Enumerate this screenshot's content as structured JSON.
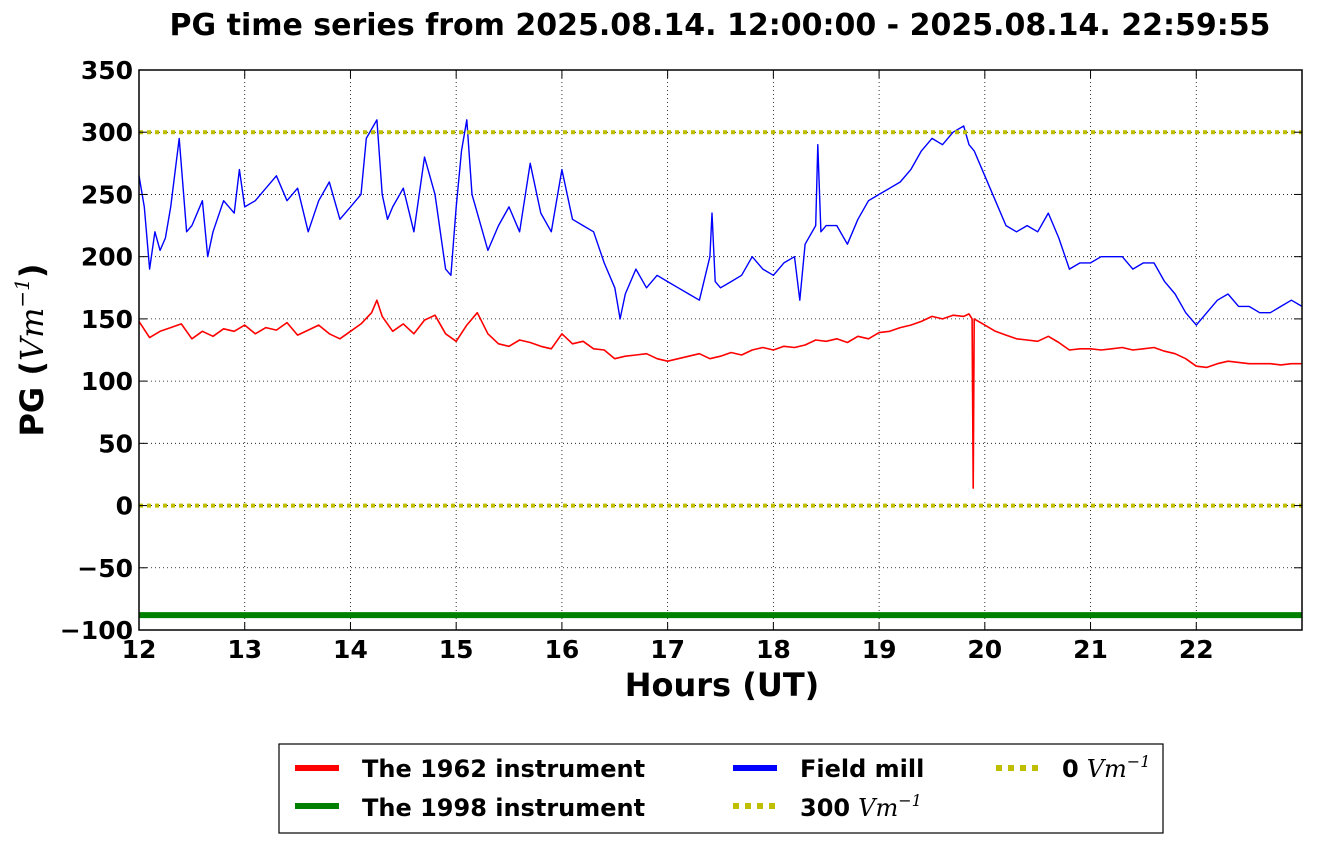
{
  "chart_data": {
    "type": "line",
    "title": "PG time series from 2025.08.14. 12:00:00 - 2025.08.14. 22:59:55",
    "xlabel": "Hours (UT)",
    "ylabel": {
      "text": "PG (",
      "math": "Vm",
      "sup": "−1",
      "close": ")"
    },
    "xlim": [
      12,
      23
    ],
    "ylim": [
      -100,
      350
    ],
    "xticks": [
      12,
      13,
      14,
      15,
      16,
      17,
      18,
      19,
      20,
      21,
      22
    ],
    "xtick_labels": [
      "12",
      "13",
      "14",
      "15",
      "16",
      "17",
      "18",
      "19",
      "20",
      "21",
      "22"
    ],
    "yticks": [
      -100,
      -50,
      0,
      50,
      100,
      150,
      200,
      250,
      300,
      350
    ],
    "ytick_labels": [
      "−100",
      "−50",
      "0",
      "50",
      "100",
      "150",
      "200",
      "250",
      "300",
      "350"
    ],
    "grid": true,
    "legend_position": "bottom, below plot",
    "series": [
      {
        "name": "The 1962 instrument",
        "color": "#ff0000",
        "x": [
          12.0,
          12.1,
          12.2,
          12.3,
          12.4,
          12.5,
          12.6,
          12.7,
          12.8,
          12.9,
          13.0,
          13.1,
          13.2,
          13.3,
          13.4,
          13.5,
          13.6,
          13.7,
          13.8,
          13.9,
          14.0,
          14.1,
          14.2,
          14.25,
          14.3,
          14.4,
          14.5,
          14.6,
          14.7,
          14.8,
          14.9,
          15.0,
          15.1,
          15.2,
          15.3,
          15.4,
          15.5,
          15.6,
          15.7,
          15.8,
          15.9,
          16.0,
          16.1,
          16.2,
          16.3,
          16.4,
          16.5,
          16.6,
          16.7,
          16.8,
          16.9,
          17.0,
          17.1,
          17.2,
          17.3,
          17.4,
          17.5,
          17.6,
          17.7,
          17.8,
          17.9,
          18.0,
          18.1,
          18.2,
          18.3,
          18.4,
          18.5,
          18.6,
          18.7,
          18.8,
          18.9,
          19.0,
          19.1,
          19.2,
          19.3,
          19.4,
          19.5,
          19.6,
          19.7,
          19.8,
          19.85,
          19.88,
          19.89,
          19.9,
          20.0,
          20.1,
          20.2,
          20.3,
          20.4,
          20.5,
          20.6,
          20.7,
          20.8,
          20.9,
          21.0,
          21.1,
          21.2,
          21.3,
          21.4,
          21.5,
          21.6,
          21.7,
          21.8,
          21.9,
          22.0,
          22.1,
          22.2,
          22.3,
          22.4,
          22.5,
          22.6,
          22.7,
          22.8,
          22.9,
          23.0
        ],
        "y": [
          148,
          135,
          140,
          143,
          146,
          134,
          140,
          136,
          142,
          140,
          145,
          138,
          143,
          141,
          147,
          137,
          141,
          145,
          138,
          134,
          140,
          146,
          155,
          165,
          152,
          140,
          146,
          138,
          149,
          153,
          138,
          132,
          145,
          155,
          138,
          130,
          128,
          133,
          131,
          128,
          126,
          138,
          130,
          132,
          126,
          125,
          118,
          120,
          121,
          122,
          118,
          116,
          118,
          120,
          122,
          118,
          120,
          123,
          121,
          125,
          127,
          125,
          128,
          127,
          129,
          133,
          132,
          134,
          131,
          136,
          134,
          139,
          140,
          143,
          145,
          148,
          152,
          150,
          153,
          152,
          154,
          150,
          14,
          150,
          145,
          140,
          137,
          134,
          133,
          132,
          136,
          131,
          125,
          126,
          126,
          125,
          126,
          127,
          125,
          126,
          127,
          124,
          122,
          118,
          112,
          111,
          114,
          116,
          115,
          114,
          114,
          114,
          113,
          114,
          114
        ]
      },
      {
        "name": "The 1998 instrument",
        "color": "#008000",
        "x": [
          12,
          23
        ],
        "y": [
          -88,
          -88
        ]
      },
      {
        "name": "Field mill",
        "color": "#0000ff",
        "x": [
          12.0,
          12.05,
          12.1,
          12.15,
          12.2,
          12.25,
          12.3,
          12.38,
          12.45,
          12.5,
          12.6,
          12.65,
          12.7,
          12.8,
          12.9,
          12.95,
          13.0,
          13.1,
          13.2,
          13.3,
          13.4,
          13.5,
          13.6,
          13.7,
          13.8,
          13.9,
          14.0,
          14.1,
          14.15,
          14.25,
          14.3,
          14.35,
          14.4,
          14.5,
          14.6,
          14.7,
          14.75,
          14.8,
          14.9,
          14.95,
          15.0,
          15.05,
          15.1,
          15.15,
          15.2,
          15.3,
          15.4,
          15.5,
          15.6,
          15.7,
          15.8,
          15.9,
          16.0,
          16.1,
          16.2,
          16.3,
          16.4,
          16.5,
          16.55,
          16.6,
          16.7,
          16.8,
          16.9,
          17.0,
          17.1,
          17.2,
          17.3,
          17.4,
          17.42,
          17.45,
          17.5,
          17.6,
          17.7,
          17.8,
          17.9,
          18.0,
          18.1,
          18.2,
          18.25,
          18.3,
          18.4,
          18.42,
          18.45,
          18.5,
          18.6,
          18.7,
          18.8,
          18.9,
          19.0,
          19.1,
          19.2,
          19.3,
          19.4,
          19.5,
          19.6,
          19.7,
          19.8,
          19.85,
          19.9,
          20.0,
          20.1,
          20.2,
          20.3,
          20.4,
          20.5,
          20.6,
          20.7,
          20.8,
          20.9,
          21.0,
          21.1,
          21.2,
          21.3,
          21.4,
          21.5,
          21.6,
          21.7,
          21.8,
          21.9,
          22.0,
          22.1,
          22.2,
          22.3,
          22.4,
          22.5,
          22.6,
          22.7,
          22.8,
          22.9,
          23.0
        ],
        "y": [
          265,
          240,
          190,
          220,
          205,
          215,
          240,
          295,
          220,
          225,
          245,
          200,
          220,
          245,
          235,
          270,
          240,
          245,
          255,
          265,
          245,
          255,
          220,
          245,
          260,
          230,
          240,
          250,
          295,
          310,
          250,
          230,
          240,
          255,
          220,
          280,
          265,
          250,
          190,
          185,
          240,
          285,
          310,
          250,
          235,
          205,
          225,
          240,
          220,
          275,
          235,
          220,
          270,
          230,
          225,
          220,
          195,
          175,
          150,
          170,
          190,
          175,
          185,
          180,
          175,
          170,
          165,
          200,
          235,
          180,
          175,
          180,
          185,
          200,
          190,
          185,
          195,
          200,
          165,
          210,
          225,
          290,
          220,
          225,
          225,
          210,
          230,
          245,
          250,
          255,
          260,
          270,
          285,
          295,
          290,
          300,
          305,
          290,
          285,
          265,
          245,
          225,
          220,
          225,
          220,
          235,
          215,
          190,
          195,
          195,
          200,
          200,
          200,
          190,
          195,
          195,
          180,
          170,
          155,
          145,
          155,
          165,
          170,
          160,
          160,
          155,
          155,
          160,
          165,
          160
        ]
      },
      {
        "name": "300 Vm−1",
        "color": "#bfbf00",
        "x": [
          12,
          23
        ],
        "y": [
          300,
          300
        ]
      },
      {
        "name": "0 Vm−1",
        "color": "#bfbf00",
        "x": [
          12,
          23
        ],
        "y": [
          0,
          0
        ]
      }
    ]
  },
  "legend": {
    "items": [
      {
        "label": "The 1962 instrument",
        "color": "#ff0000",
        "style": "solid"
      },
      {
        "label": "The 1998 instrument",
        "color": "#008000",
        "style": "solid"
      },
      {
        "label": "Field mill",
        "color": "#0000ff",
        "style": "solid"
      },
      {
        "label": "300",
        "math": "Vm",
        "sup": "−1",
        "color": "#bfbf00",
        "style": "dotted"
      },
      {
        "label": "0",
        "math": "Vm",
        "sup": "−1",
        "color": "#bfbf00",
        "style": "dotted"
      }
    ]
  }
}
